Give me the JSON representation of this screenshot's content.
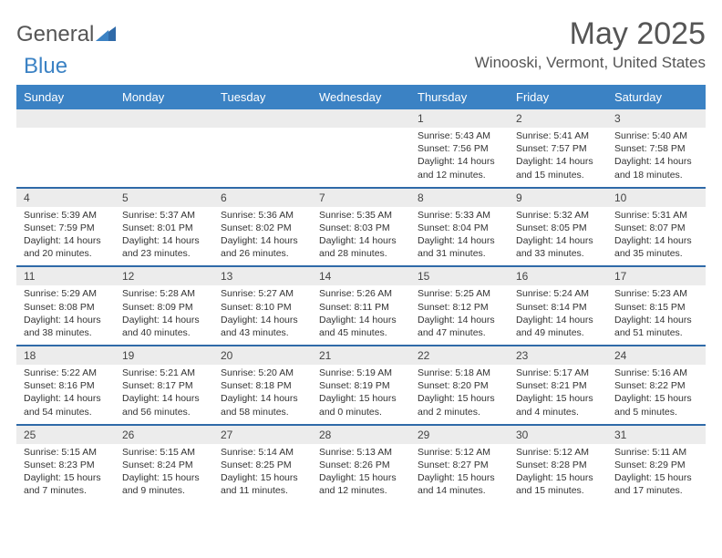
{
  "brand": {
    "part1": "General",
    "part2": "Blue"
  },
  "title": "May 2025",
  "location": "Winooski, Vermont, United States",
  "header_bg": "#3b82c4",
  "daynames": [
    "Sunday",
    "Monday",
    "Tuesday",
    "Wednesday",
    "Thursday",
    "Friday",
    "Saturday"
  ],
  "weeks": [
    {
      "nums": [
        "",
        "",
        "",
        "",
        "1",
        "2",
        "3"
      ],
      "cells": [
        "",
        "",
        "",
        "",
        "Sunrise: 5:43 AM\nSunset: 7:56 PM\nDaylight: 14 hours and 12 minutes.",
        "Sunrise: 5:41 AM\nSunset: 7:57 PM\nDaylight: 14 hours and 15 minutes.",
        "Sunrise: 5:40 AM\nSunset: 7:58 PM\nDaylight: 14 hours and 18 minutes."
      ]
    },
    {
      "nums": [
        "4",
        "5",
        "6",
        "7",
        "8",
        "9",
        "10"
      ],
      "cells": [
        "Sunrise: 5:39 AM\nSunset: 7:59 PM\nDaylight: 14 hours and 20 minutes.",
        "Sunrise: 5:37 AM\nSunset: 8:01 PM\nDaylight: 14 hours and 23 minutes.",
        "Sunrise: 5:36 AM\nSunset: 8:02 PM\nDaylight: 14 hours and 26 minutes.",
        "Sunrise: 5:35 AM\nSunset: 8:03 PM\nDaylight: 14 hours and 28 minutes.",
        "Sunrise: 5:33 AM\nSunset: 8:04 PM\nDaylight: 14 hours and 31 minutes.",
        "Sunrise: 5:32 AM\nSunset: 8:05 PM\nDaylight: 14 hours and 33 minutes.",
        "Sunrise: 5:31 AM\nSunset: 8:07 PM\nDaylight: 14 hours and 35 minutes."
      ]
    },
    {
      "nums": [
        "11",
        "12",
        "13",
        "14",
        "15",
        "16",
        "17"
      ],
      "cells": [
        "Sunrise: 5:29 AM\nSunset: 8:08 PM\nDaylight: 14 hours and 38 minutes.",
        "Sunrise: 5:28 AM\nSunset: 8:09 PM\nDaylight: 14 hours and 40 minutes.",
        "Sunrise: 5:27 AM\nSunset: 8:10 PM\nDaylight: 14 hours and 43 minutes.",
        "Sunrise: 5:26 AM\nSunset: 8:11 PM\nDaylight: 14 hours and 45 minutes.",
        "Sunrise: 5:25 AM\nSunset: 8:12 PM\nDaylight: 14 hours and 47 minutes.",
        "Sunrise: 5:24 AM\nSunset: 8:14 PM\nDaylight: 14 hours and 49 minutes.",
        "Sunrise: 5:23 AM\nSunset: 8:15 PM\nDaylight: 14 hours and 51 minutes."
      ]
    },
    {
      "nums": [
        "18",
        "19",
        "20",
        "21",
        "22",
        "23",
        "24"
      ],
      "cells": [
        "Sunrise: 5:22 AM\nSunset: 8:16 PM\nDaylight: 14 hours and 54 minutes.",
        "Sunrise: 5:21 AM\nSunset: 8:17 PM\nDaylight: 14 hours and 56 minutes.",
        "Sunrise: 5:20 AM\nSunset: 8:18 PM\nDaylight: 14 hours and 58 minutes.",
        "Sunrise: 5:19 AM\nSunset: 8:19 PM\nDaylight: 15 hours and 0 minutes.",
        "Sunrise: 5:18 AM\nSunset: 8:20 PM\nDaylight: 15 hours and 2 minutes.",
        "Sunrise: 5:17 AM\nSunset: 8:21 PM\nDaylight: 15 hours and 4 minutes.",
        "Sunrise: 5:16 AM\nSunset: 8:22 PM\nDaylight: 15 hours and 5 minutes."
      ]
    },
    {
      "nums": [
        "25",
        "26",
        "27",
        "28",
        "29",
        "30",
        "31"
      ],
      "cells": [
        "Sunrise: 5:15 AM\nSunset: 8:23 PM\nDaylight: 15 hours and 7 minutes.",
        "Sunrise: 5:15 AM\nSunset: 8:24 PM\nDaylight: 15 hours and 9 minutes.",
        "Sunrise: 5:14 AM\nSunset: 8:25 PM\nDaylight: 15 hours and 11 minutes.",
        "Sunrise: 5:13 AM\nSunset: 8:26 PM\nDaylight: 15 hours and 12 minutes.",
        "Sunrise: 5:12 AM\nSunset: 8:27 PM\nDaylight: 15 hours and 14 minutes.",
        "Sunrise: 5:12 AM\nSunset: 8:28 PM\nDaylight: 15 hours and 15 minutes.",
        "Sunrise: 5:11 AM\nSunset: 8:29 PM\nDaylight: 15 hours and 17 minutes."
      ]
    }
  ]
}
